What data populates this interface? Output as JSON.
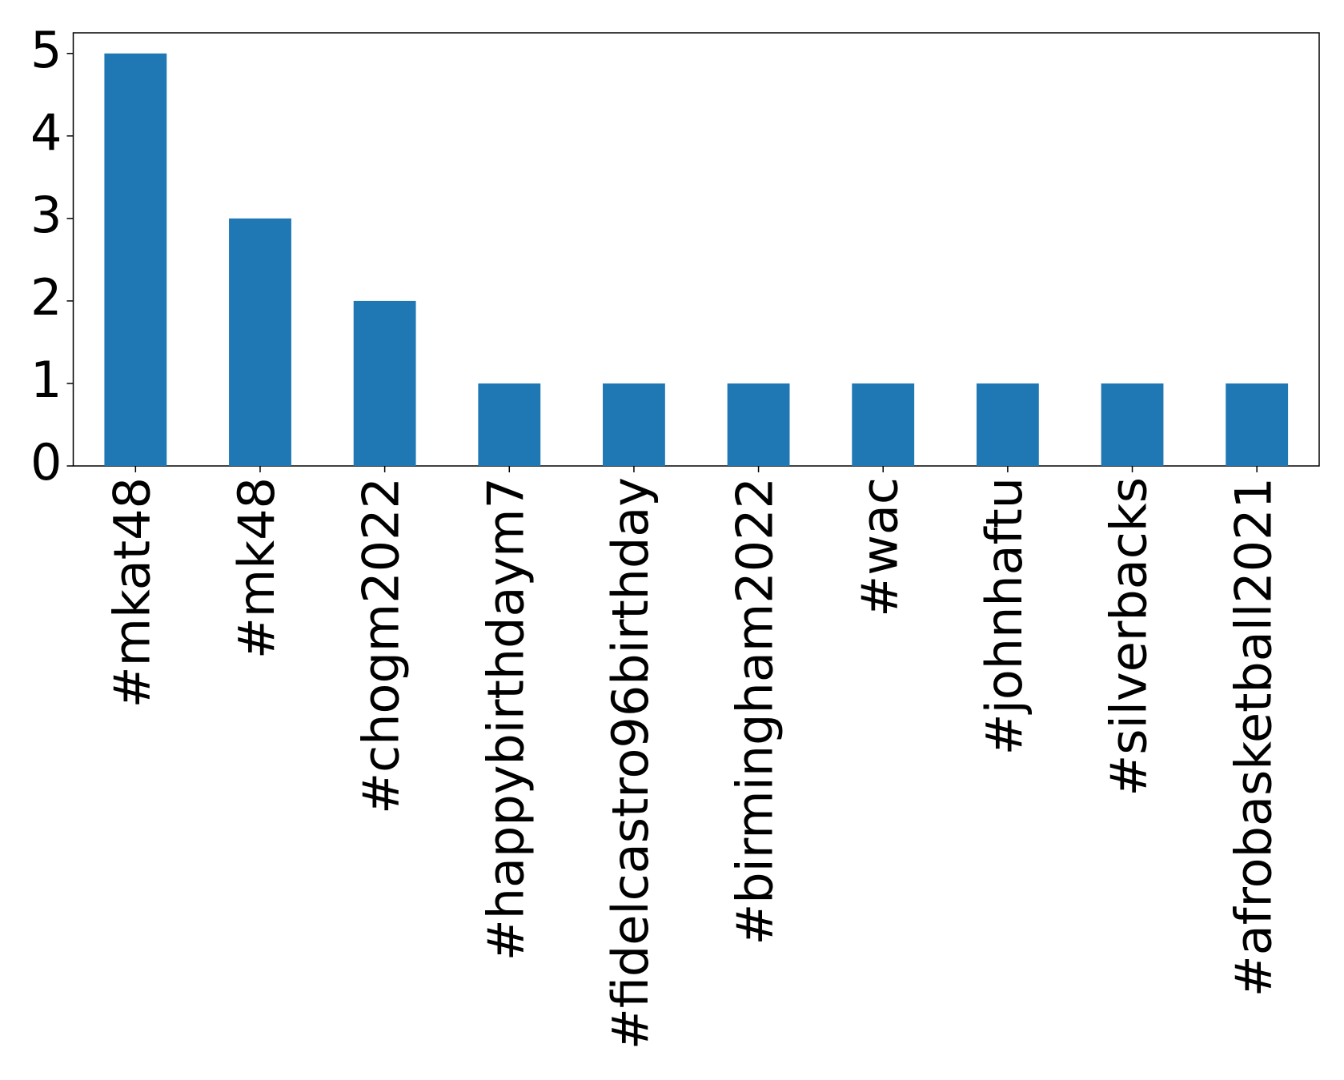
{
  "chart_data": {
    "type": "bar",
    "categories": [
      "#mkat48",
      "#mk48",
      "#chogm2022",
      "#happybirthdaym7",
      "#fidelcastro96birthday",
      "#birmingham2022",
      "#wac",
      "#johnhaftu",
      "#silverbacks",
      "#afrobasketball2021"
    ],
    "values": [
      5,
      3,
      2,
      1,
      1,
      1,
      1,
      1,
      1,
      1
    ],
    "color": "#1f77b4",
    "ylim": [
      0,
      5.25
    ],
    "yticks": [
      0,
      1,
      2,
      3,
      4,
      5
    ],
    "grid": false
  }
}
